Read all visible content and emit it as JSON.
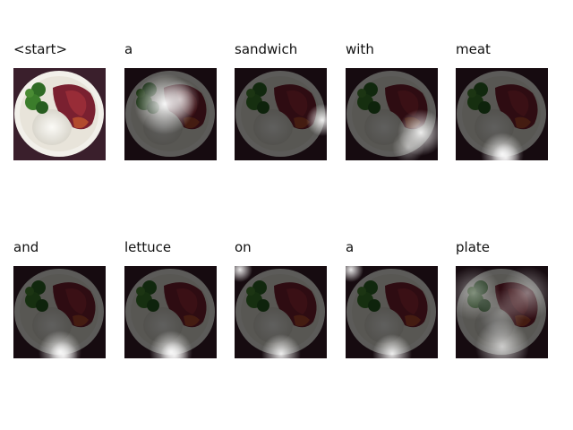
{
  "rows": [
    {
      "cells": [
        {
          "word": "<start>",
          "attention": "none"
        },
        {
          "word": "a",
          "attention": "upper-left"
        },
        {
          "word": "sandwich",
          "attention": "right"
        },
        {
          "word": "with",
          "attention": "lower-right"
        },
        {
          "word": "meat",
          "attention": "bottom"
        }
      ]
    },
    {
      "cells": [
        {
          "word": "and",
          "attention": "bottom"
        },
        {
          "word": "lettuce",
          "attention": "bottom"
        },
        {
          "word": "on",
          "attention": "top-left-and-bottom"
        },
        {
          "word": "a",
          "attention": "top-left-and-bottom"
        },
        {
          "word": "plate",
          "attention": "broad"
        }
      ]
    }
  ],
  "colors": {
    "background": "#ffffff",
    "plate": "#f2f0ea",
    "bowl_bg": "#3a1f2c",
    "meat": "#7a2030",
    "broccoli": "#2f6b25",
    "rice": "#f3f1ea",
    "dark_overlay": "#000000"
  }
}
